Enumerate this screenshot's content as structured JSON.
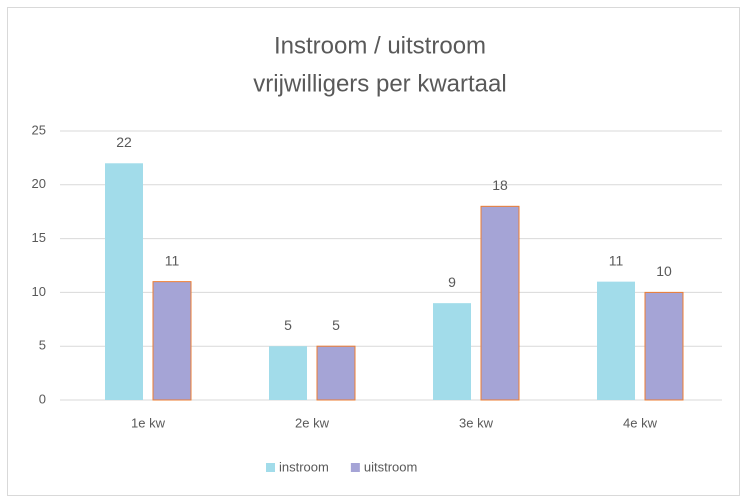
{
  "chart_data": {
    "type": "bar",
    "title": [
      "Instroom / uitstroom",
      "vrijwilligers per kwartaal"
    ],
    "categories": [
      "1e kw",
      "2e kw",
      "3e kw",
      "4e kw"
    ],
    "series": [
      {
        "name": "instroom",
        "color": "#a2dcea",
        "values": [
          22,
          5,
          9,
          11
        ]
      },
      {
        "name": "uitstroom",
        "color": "#a5a4d6",
        "edgecolor": "#ed7d31",
        "values": [
          11,
          5,
          18,
          10
        ]
      }
    ],
    "ylim": [
      0,
      25
    ],
    "yticks": [
      0,
      5,
      10,
      15,
      20,
      25
    ],
    "grid": true,
    "legend": "bottom"
  }
}
